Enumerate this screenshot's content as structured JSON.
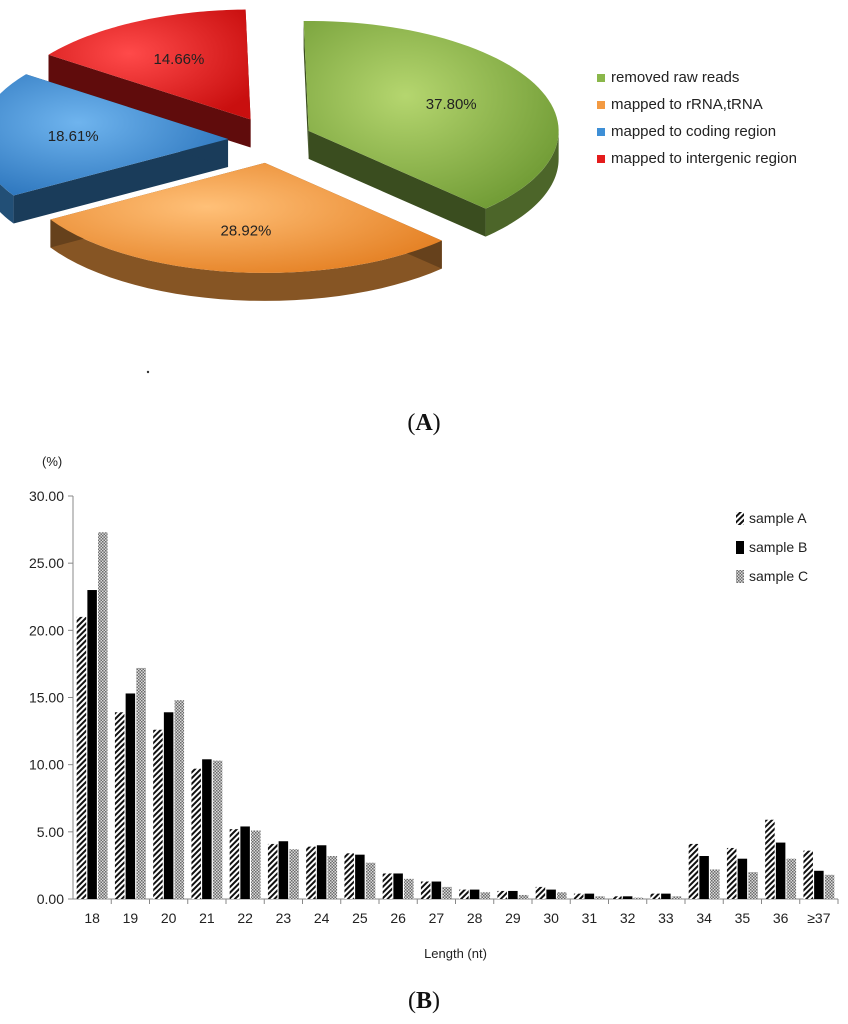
{
  "panel_a_label": "A",
  "panel_b_label": "B",
  "chart_data": [
    {
      "type": "pie",
      "labels": [
        "removed raw reads",
        "mapped to rRNA,tRNA",
        "mapped to coding region",
        "mapped to intergenic region"
      ],
      "values": [
        37.8,
        28.92,
        18.61,
        14.66
      ],
      "value_labels": [
        "37.80%",
        "28.92%",
        "18.61%",
        "14.66%"
      ],
      "colors": [
        "#8ab74a",
        "#f39a42",
        "#3e8fd6",
        "#e41c1c"
      ],
      "exploded": true,
      "style": "3d",
      "legend_position": "right"
    },
    {
      "type": "bar",
      "ylabel": "(%)",
      "xlabel": "Length (nt)",
      "ylim": [
        0,
        30
      ],
      "yticks": [
        "0.00",
        "5.00",
        "10.00",
        "15.00",
        "20.00",
        "25.00",
        "30.00"
      ],
      "categories": [
        "18",
        "19",
        "20",
        "21",
        "22",
        "23",
        "24",
        "25",
        "26",
        "27",
        "28",
        "29",
        "30",
        "31",
        "32",
        "33",
        "34",
        "35",
        "36",
        "≥37"
      ],
      "series": [
        {
          "name": "sample A",
          "pattern": "diagonal-hatch",
          "values": [
            21.0,
            13.9,
            12.6,
            9.7,
            5.2,
            4.1,
            3.9,
            3.4,
            1.9,
            1.3,
            0.7,
            0.6,
            0.9,
            0.4,
            0.2,
            0.4,
            4.1,
            3.8,
            5.9,
            3.6
          ]
        },
        {
          "name": "sample B",
          "pattern": "solid-black",
          "values": [
            23.0,
            15.3,
            13.9,
            10.4,
            5.4,
            4.3,
            4.0,
            3.3,
            1.9,
            1.3,
            0.7,
            0.6,
            0.7,
            0.4,
            0.2,
            0.4,
            3.2,
            3.0,
            4.2,
            2.1
          ]
        },
        {
          "name": "sample C",
          "pattern": "crosshatch",
          "values": [
            27.3,
            17.2,
            14.8,
            10.3,
            5.1,
            3.7,
            3.2,
            2.7,
            1.5,
            0.9,
            0.5,
            0.3,
            0.5,
            0.2,
            0.1,
            0.2,
            2.2,
            2.0,
            3.0,
            1.8
          ]
        }
      ],
      "grid": false,
      "legend_position": "top-right"
    }
  ]
}
